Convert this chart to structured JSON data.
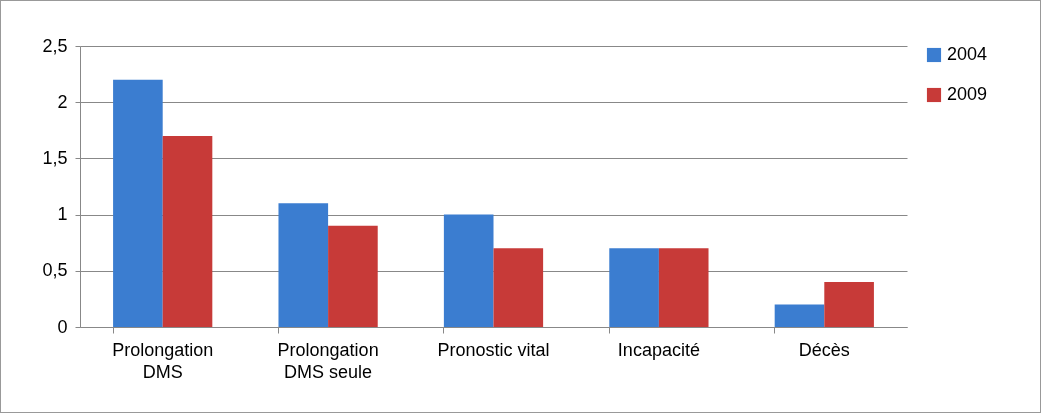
{
  "chart_data": {
    "type": "bar",
    "categories": [
      "Prolongation DMS",
      "Prolongation DMS seule",
      "Pronostic vital",
      "Incapacité",
      "Décès"
    ],
    "series": [
      {
        "name": "2004",
        "color": "#3b7dd0",
        "values": [
          2.2,
          1.1,
          1.0,
          0.7,
          0.2
        ]
      },
      {
        "name": "2009",
        "color": "#c73a38",
        "values": [
          1.7,
          0.9,
          0.7,
          0.7,
          0.4
        ]
      }
    ],
    "ylim": [
      0,
      2.5
    ],
    "yticks": [
      0,
      {
        "value": 0.5,
        "label": "0,5"
      },
      1,
      {
        "value": 1.5,
        "label": "1,5"
      },
      2,
      {
        "value": 2.5,
        "label": "2,5"
      }
    ],
    "grid": "y",
    "legend": "right"
  }
}
